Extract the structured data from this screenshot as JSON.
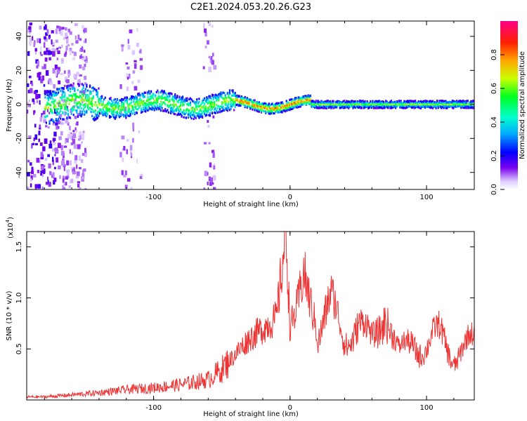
{
  "title": "C2E1.2024.053.20.26.G23",
  "colors": {
    "snr_line": "#ee3333",
    "axis": "#000000"
  },
  "chart_data": [
    {
      "type": "heatmap",
      "xlabel": "Height of straight line (km)",
      "ylabel": "Frequency (Hz)",
      "xlim": [
        -193,
        135
      ],
      "ylim": [
        -50,
        49
      ],
      "x_ticks": [
        -100,
        0,
        100
      ],
      "x_tick_labels": [
        "-100",
        "0",
        "100"
      ],
      "y_ticks": [
        -40,
        -20,
        0,
        20,
        40
      ],
      "y_tick_labels": [
        "-40",
        "-20",
        "0",
        "20",
        "40"
      ],
      "colorbar": {
        "label": "Normalized spectral amplitude",
        "range": [
          0,
          1
        ],
        "ticks": [
          0.0,
          0.2,
          0.4,
          0.6,
          0.8
        ],
        "tick_labels": [
          "0.0",
          "0.2",
          "0.4",
          "0.6",
          "0.8"
        ],
        "colormap": [
          "#ffffff",
          "#7700ee",
          "#0000ff",
          "#00ccff",
          "#00ff44",
          "#ccff00",
          "#ff8800",
          "#ff0000",
          "#ff00aa"
        ]
      },
      "band": {
        "description": "main frequency band near 0 Hz",
        "x_start": -180,
        "x_end": 135,
        "freq_center": 0,
        "freq_halfwidth_hz": 4,
        "bright_segment_x": [
          -40,
          15
        ]
      }
    },
    {
      "type": "line",
      "xlabel": "Height of straight line (km)",
      "ylabel": "SNR (10 * v/v)",
      "y_scale_label": "(x10",
      "y_scale_exponent": "4",
      "xlim": [
        -193,
        135
      ],
      "ylim": [
        0,
        1.65
      ],
      "x_ticks": [
        -100,
        0,
        100
      ],
      "x_tick_labels": [
        "-100",
        "0",
        "100"
      ],
      "y_ticks": [
        0.5,
        1.0,
        1.5
      ],
      "y_tick_labels": [
        "0.5",
        "1.0",
        "1.5"
      ],
      "series": [
        {
          "x": [
            -193,
            -180,
            -160,
            -140,
            -120,
            -100,
            -80,
            -60,
            -50,
            -40,
            -30,
            -20,
            -10,
            -3,
            0,
            5,
            10,
            20,
            30,
            40,
            50,
            60,
            70,
            80,
            90,
            100,
            110,
            120,
            135
          ],
          "y": [
            0.03,
            0.03,
            0.05,
            0.07,
            0.1,
            0.12,
            0.15,
            0.2,
            0.3,
            0.45,
            0.6,
            0.7,
            0.8,
            1.65,
            0.7,
            0.9,
            1.25,
            0.65,
            0.95,
            0.6,
            0.75,
            0.55,
            0.9,
            0.4,
            0.6,
            0.5,
            0.65,
            0.45,
            0.55
          ]
        }
      ]
    }
  ]
}
